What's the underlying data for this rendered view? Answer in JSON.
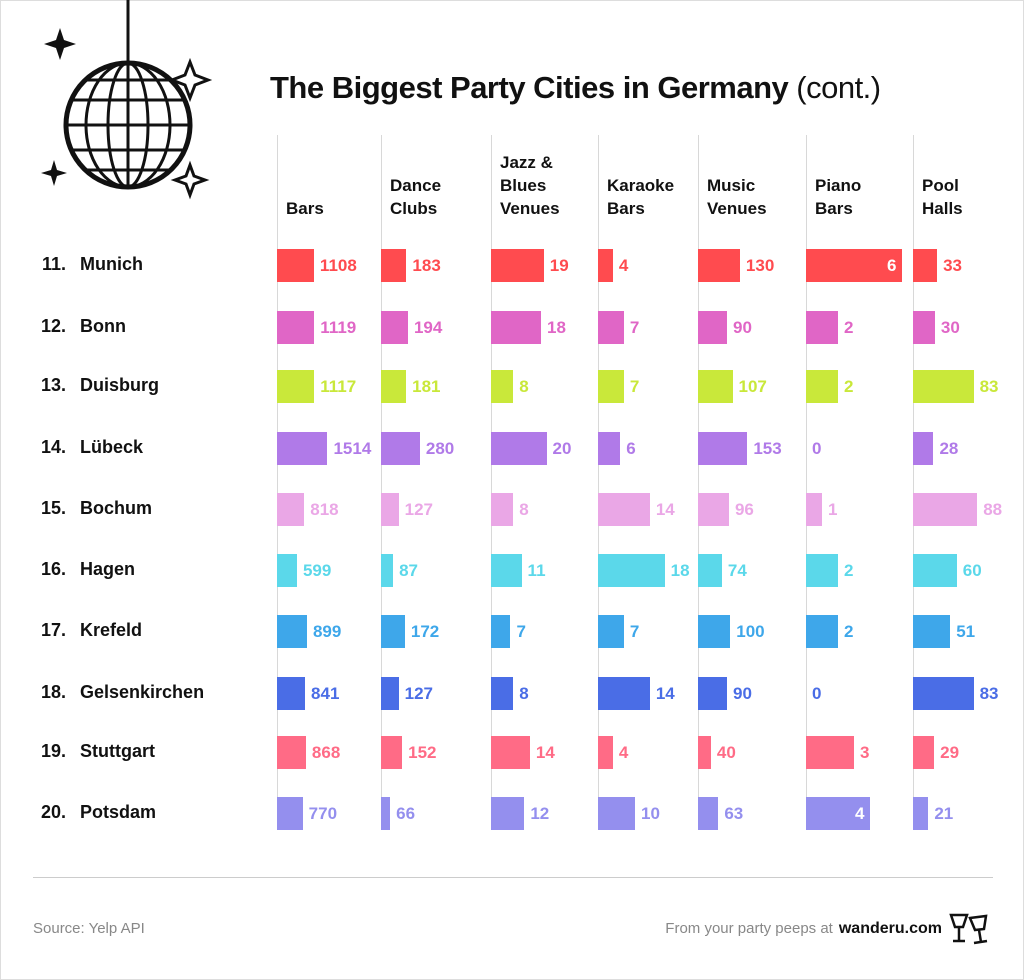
{
  "chart_data": {
    "type": "bar",
    "title": "The Biggest Party Cities in Germany",
    "subtitle": "(cont.)",
    "ranks": [
      "11.",
      "12.",
      "13.",
      "14.",
      "15.",
      "16.",
      "17.",
      "18.",
      "19.",
      "20."
    ],
    "categories": [
      "Munich",
      "Bonn",
      "Duisburg",
      "Lübeck",
      "Bochum",
      "Hagen",
      "Krefeld",
      "Gelsenkirchen",
      "Stuttgart",
      "Potsdam"
    ],
    "colors": [
      "#ff4b4f",
      "#e066c6",
      "#c9e83a",
      "#b07ae8",
      "#eaa7e6",
      "#5bd8ea",
      "#3ea7ea",
      "#4a6de6",
      "#ff6b86",
      "#948fee"
    ],
    "series": [
      {
        "name": "Bars",
        "xlim": [
          0,
          3000
        ],
        "values": [
          1108,
          1119,
          1117,
          1514,
          818,
          599,
          899,
          841,
          868,
          770
        ]
      },
      {
        "name": "Dance Clubs",
        "xlim": [
          0,
          720
        ],
        "values": [
          183,
          194,
          181,
          280,
          127,
          87,
          172,
          127,
          152,
          66
        ]
      },
      {
        "name": "Jazz & Blues Venues",
        "xlim": [
          0,
          36
        ],
        "values": [
          19,
          18,
          8,
          20,
          8,
          11,
          7,
          8,
          14,
          12
        ]
      },
      {
        "name": "Karaoke Bars",
        "xlim": [
          0,
          27
        ],
        "values": [
          4,
          7,
          7,
          6,
          14,
          18,
          7,
          14,
          4,
          10
        ]
      },
      {
        "name": "Music Venues",
        "xlim": [
          0,
          310
        ],
        "values": [
          130,
          90,
          107,
          153,
          96,
          74,
          100,
          90,
          40,
          63
        ]
      },
      {
        "name": "Piano Bars",
        "xlim": [
          0,
          6.25
        ],
        "values": [
          6,
          2,
          2,
          0,
          1,
          2,
          2,
          0,
          3,
          4
        ]
      },
      {
        "name": "Pool Halls",
        "xlim": [
          0,
          137
        ],
        "values": [
          33,
          30,
          83,
          28,
          88,
          60,
          51,
          83,
          29,
          21
        ]
      }
    ],
    "source": "Source: Yelp API",
    "credit": "From your party peeps at",
    "brand": "wanderu.com"
  }
}
